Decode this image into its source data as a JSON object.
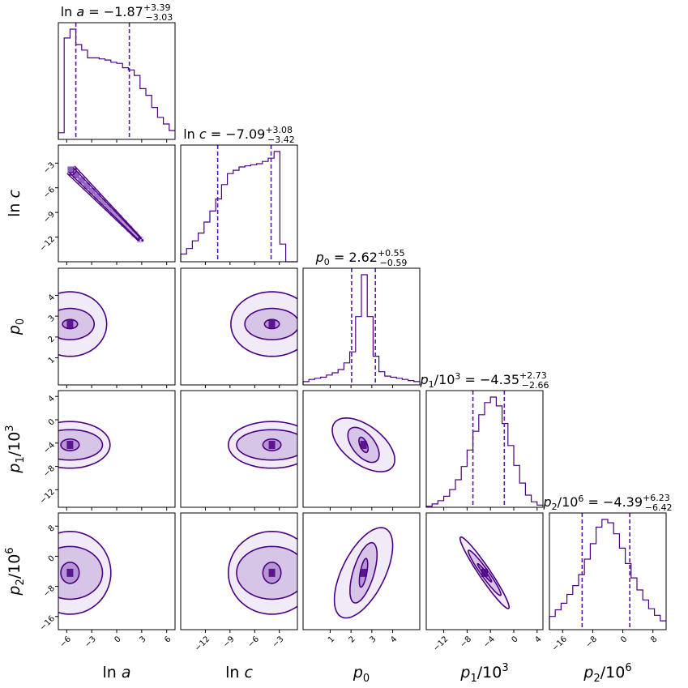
{
  "chart_data": {
    "type": "corner",
    "colors": {
      "line": "#4b0082",
      "quantile": "#5e16a8",
      "fill": "#7a3fb4",
      "frame": "#000000"
    },
    "parameters": [
      {
        "id": "lna",
        "label": "ln a",
        "title": {
          "name": "ln a",
          "value": "−1.87",
          "upper": "+3.39",
          "lower": "−3.03"
        },
        "range": [
          -7,
          7
        ],
        "ticks": [
          -6,
          -3,
          0,
          3,
          6
        ],
        "tick_labels": [
          "−6",
          "−3",
          "0",
          "3",
          "6"
        ],
        "quantiles": [
          -4.9,
          1.52
        ],
        "hist_edges": [
          -7,
          -6.3,
          -5.6,
          -4.9,
          -4.2,
          -3.5,
          -2.8,
          -2.1,
          -1.4,
          -0.7,
          0,
          0.7,
          1.4,
          2.1,
          2.8,
          3.5,
          4.2,
          4.9,
          5.6,
          6.3,
          7
        ],
        "hist_counts": [
          0.06,
          0.92,
          1.0,
          0.86,
          0.81,
          0.74,
          0.74,
          0.73,
          0.72,
          0.7,
          0.69,
          0.65,
          0.63,
          0.58,
          0.46,
          0.4,
          0.29,
          0.2,
          0.14,
          0.08
        ]
      },
      {
        "id": "lnc",
        "label": "ln c",
        "title": {
          "name": "ln c",
          "value": "−7.09",
          "upper": "+3.08",
          "lower": "−3.42"
        },
        "range": [
          -15,
          -0.8
        ],
        "ticks": [
          -12,
          -9,
          -6,
          -3
        ],
        "tick_labels": [
          "−12",
          "−9",
          "−6",
          "−3"
        ],
        "quantiles": [
          -10.5,
          -4.0
        ],
        "hist_edges": [
          -15,
          -14.29,
          -13.58,
          -12.87,
          -12.16,
          -11.45,
          -10.74,
          -10.03,
          -9.32,
          -8.61,
          -7.9,
          -7.19,
          -6.48,
          -5.77,
          -5.06,
          -4.35,
          -3.64,
          -2.93,
          -2.22,
          -1.51,
          -0.8
        ],
        "hist_counts": [
          0.07,
          0.12,
          0.19,
          0.26,
          0.36,
          0.46,
          0.57,
          0.7,
          0.8,
          0.83,
          0.86,
          0.87,
          0.88,
          0.89,
          0.91,
          0.94,
          1.0,
          0.16,
          0,
          0
        ]
      },
      {
        "id": "p0",
        "label": "p0",
        "title": {
          "name": "p",
          "sub": "0",
          "value": "2.62",
          "upper": "+0.55",
          "lower": "−0.59"
        },
        "range": [
          -0.3,
          5.3
        ],
        "ticks": [
          1,
          2,
          3,
          4
        ],
        "tick_labels": [
          "1",
          "2",
          "3",
          "4"
        ],
        "quantiles": [
          2.03,
          3.17
        ],
        "hist_edges": [
          -0.3,
          -0.02,
          0.26,
          0.54,
          0.82,
          1.1,
          1.38,
          1.66,
          1.94,
          2.22,
          2.5,
          2.78,
          3.06,
          3.34,
          3.62,
          3.9,
          4.18,
          4.46,
          4.74,
          5.02,
          5.3
        ],
        "hist_counts": [
          0.03,
          0.05,
          0.06,
          0.07,
          0.09,
          0.11,
          0.14,
          0.2,
          0.3,
          0.62,
          1.0,
          0.62,
          0.26,
          0.12,
          0.08,
          0.07,
          0.06,
          0.05,
          0.04,
          0.03
        ]
      },
      {
        "id": "p1",
        "label": "p1/10^3",
        "title": {
          "name": "p",
          "sub": "1",
          "slash": "/10",
          "exp": "3",
          "value": "−4.35",
          "upper": "+2.73",
          "lower": "−2.66"
        },
        "range": [
          -15,
          5
        ],
        "ticks": [
          -12,
          -8,
          -4,
          0,
          4
        ],
        "tick_labels": [
          "−12",
          "−8",
          "−4",
          "0",
          "4"
        ],
        "quantiles": [
          -7.0,
          -1.62
        ],
        "hist_edges": [
          -15,
          -14,
          -13,
          -12,
          -11,
          -10,
          -9,
          -8,
          -7,
          -6,
          -5,
          -4,
          -3,
          -2,
          -1,
          0,
          1,
          2,
          3,
          4,
          5
        ],
        "hist_counts": [
          0.01,
          0.03,
          0.06,
          0.1,
          0.16,
          0.25,
          0.37,
          0.52,
          0.69,
          0.84,
          0.95,
          1.0,
          0.92,
          0.76,
          0.56,
          0.38,
          0.22,
          0.11,
          0.05,
          0.02
        ]
      },
      {
        "id": "p2",
        "label": "p2/10^6",
        "title": {
          "name": "p",
          "sub": "2",
          "slash": "/10",
          "exp": "6",
          "value": "−4.39",
          "upper": "+6.23",
          "lower": "−6.42"
        },
        "range": [
          -19.5,
          11.5
        ],
        "ticks": [
          -16,
          -8,
          0,
          8
        ],
        "tick_labels": [
          "−16",
          "−8",
          "0",
          "8"
        ],
        "quantiles": [
          -10.81,
          1.84
        ],
        "hist_edges": [
          -19.5,
          -17.95,
          -16.4,
          -14.85,
          -13.3,
          -11.75,
          -10.2,
          -8.65,
          -7.1,
          -5.55,
          -4.0,
          -2.45,
          -0.9,
          0.65,
          2.2,
          3.75,
          5.3,
          6.85,
          8.4,
          9.95,
          11.5
        ],
        "hist_counts": [
          0.12,
          0.18,
          0.24,
          0.32,
          0.4,
          0.5,
          0.64,
          0.78,
          0.93,
          1.0,
          0.97,
          0.87,
          0.74,
          0.6,
          0.47,
          0.36,
          0.27,
          0.19,
          0.13,
          0.08
        ]
      }
    ],
    "pairs": [
      {
        "x": "lna",
        "y": "lnc",
        "kind": "ridge",
        "corr": -0.995,
        "peak": [
          -5.5,
          -3.8
        ],
        "end": [
          2.8,
          -12.3
        ]
      },
      {
        "x": "lna",
        "y": "p0",
        "kind": "blob",
        "center": [
          -5.6,
          2.62
        ],
        "sx": [
          0.9,
          2.9,
          4.4
        ],
        "sy": [
          0.22,
          0.75,
          1.55
        ],
        "corr": 0
      },
      {
        "x": "lnc",
        "y": "p0",
        "kind": "blob",
        "center": [
          -3.9,
          2.62
        ],
        "sx": [
          0.9,
          3.3,
          5.0
        ],
        "sy": [
          0.22,
          0.75,
          1.55
        ],
        "corr": 0
      },
      {
        "x": "lna",
        "y": "p1",
        "kind": "blob",
        "center": [
          -5.6,
          -4.3
        ],
        "sx": [
          1.1,
          3.9,
          4.8
        ],
        "sy": [
          1.0,
          2.6,
          4.0
        ],
        "corr": 0
      },
      {
        "x": "lnc",
        "y": "p1",
        "kind": "blob",
        "center": [
          -3.9,
          -4.3
        ],
        "sx": [
          1.1,
          4.3,
          5.3
        ],
        "sy": [
          1.0,
          2.6,
          4.0
        ],
        "corr": 0
      },
      {
        "x": "p0",
        "y": "p1",
        "kind": "blob",
        "center": [
          2.6,
          -4.3
        ],
        "sx": [
          0.22,
          0.75,
          1.5
        ],
        "sy": [
          1.3,
          3.0,
          4.6
        ],
        "corr": -0.55
      },
      {
        "x": "lna",
        "y": "p2",
        "kind": "blob",
        "center": [
          -5.6,
          -4.4
        ],
        "sx": [
          1.1,
          3.9,
          4.9
        ],
        "sy": [
          2.8,
          7.0,
          11.0
        ],
        "corr": 0
      },
      {
        "x": "lnc",
        "y": "p2",
        "kind": "blob",
        "center": [
          -3.9,
          -4.4
        ],
        "sx": [
          1.1,
          4.3,
          5.3
        ],
        "sy": [
          2.8,
          7.0,
          11.0
        ],
        "corr": 0
      },
      {
        "x": "p0",
        "y": "p2",
        "kind": "blob",
        "center": [
          2.6,
          -4.4
        ],
        "sx": [
          0.2,
          0.65,
          1.4
        ],
        "sy": [
          3.8,
          8.0,
          12.0
        ],
        "corr": 0.6
      },
      {
        "x": "p1",
        "y": "p2",
        "kind": "blob",
        "center": [
          -5.0,
          -4.4
        ],
        "sx": [
          1.2,
          2.8,
          4.2
        ],
        "sy": [
          2.4,
          6.0,
          9.5
        ],
        "corr": -0.96
      }
    ]
  }
}
